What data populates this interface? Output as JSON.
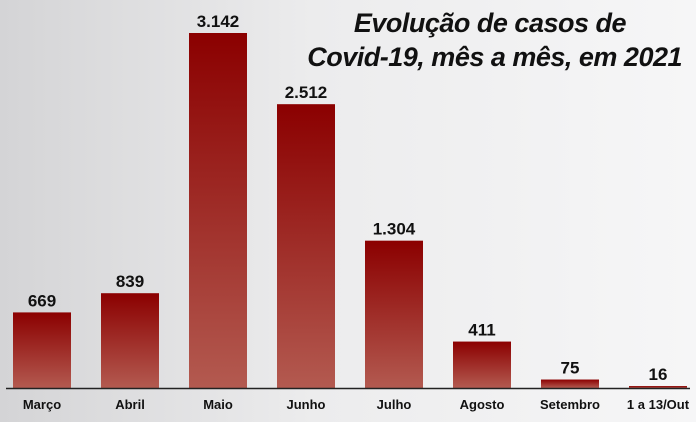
{
  "chart_data": {
    "type": "bar",
    "title_lines": [
      "Evolução de casos de",
      "Covid-19, mês a mês, em 2021"
    ],
    "categories": [
      "Março",
      "Abril",
      "Maio",
      "Junho",
      "Julho",
      "Agosto",
      "Setembro",
      "1 a 13/Out"
    ],
    "values": [
      669,
      839,
      3142,
      2512,
      1304,
      411,
      75,
      16
    ],
    "value_labels": [
      "669",
      "839",
      "3.142",
      "2.512",
      "1.304",
      "411",
      "75",
      "16"
    ],
    "ylim": [
      0,
      3142
    ],
    "grid": false,
    "legend": "none",
    "colors": {
      "bar_top": "#8b0000",
      "bar_bottom": "#b35a50",
      "axis": "#222222"
    }
  }
}
